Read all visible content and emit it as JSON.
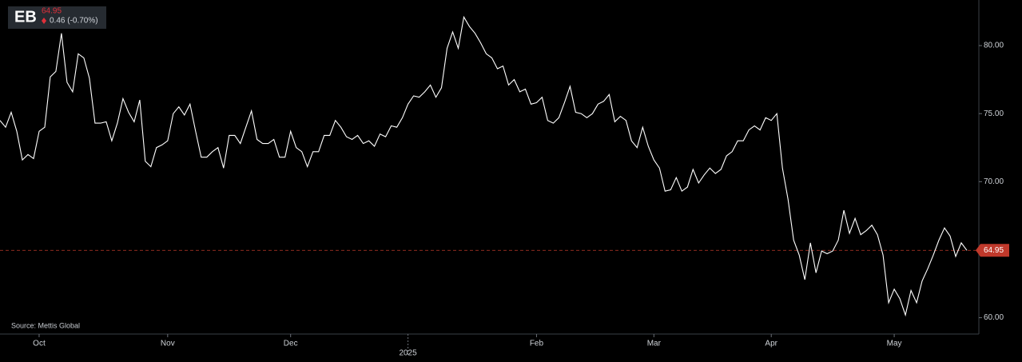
{
  "chart_data": {
    "type": "line",
    "symbol": "EB",
    "price": 64.95,
    "change": "0.46 (-0.70%)",
    "source": "Source: Mettis Global",
    "color": "#ffffff",
    "price_line_color": "#c0392b",
    "ylim": [
      58.8,
      83.35
    ],
    "yticks": [
      {
        "value": 60,
        "label": "60.00"
      },
      {
        "value": 70,
        "label": "70.00"
      },
      {
        "value": 75,
        "label": "75.00"
      },
      {
        "value": 80,
        "label": "80.00"
      }
    ],
    "categories": [
      null,
      null,
      null,
      null,
      null,
      null,
      null,
      "Oct",
      null,
      null,
      null,
      null,
      null,
      null,
      null,
      null,
      null,
      null,
      null,
      null,
      null,
      null,
      null,
      null,
      null,
      null,
      null,
      null,
      null,
      null,
      "Nov",
      null,
      null,
      null,
      null,
      null,
      null,
      null,
      null,
      null,
      null,
      null,
      null,
      null,
      null,
      null,
      null,
      null,
      null,
      null,
      null,
      null,
      "Dec",
      null,
      null,
      null,
      null,
      null,
      null,
      null,
      null,
      null,
      null,
      null,
      null,
      null,
      null,
      null,
      null,
      null,
      null,
      null,
      null,
      "2025",
      null,
      null,
      null,
      null,
      null,
      null,
      null,
      null,
      null,
      null,
      null,
      null,
      null,
      null,
      null,
      null,
      null,
      null,
      null,
      null,
      null,
      null,
      "Feb",
      null,
      null,
      null,
      null,
      null,
      null,
      null,
      null,
      null,
      null,
      null,
      null,
      null,
      null,
      null,
      null,
      null,
      null,
      null,
      null,
      "Mar",
      null,
      null,
      null,
      null,
      null,
      null,
      null,
      null,
      null,
      null,
      null,
      null,
      null,
      null,
      null,
      null,
      null,
      null,
      null,
      null,
      "Apr",
      null,
      null,
      null,
      null,
      null,
      null,
      null,
      null,
      null,
      null,
      null,
      null,
      null,
      null,
      null,
      null,
      null,
      null,
      null,
      null,
      null,
      "May",
      null,
      null,
      null,
      null,
      null,
      null,
      null,
      null,
      null,
      null,
      null,
      null,
      null
    ],
    "values": [
      74.5,
      74.0,
      75.1,
      73.7,
      71.6,
      72.0,
      71.7,
      73.7,
      74.0,
      77.7,
      78.1,
      80.9,
      77.3,
      76.6,
      79.4,
      79.1,
      77.6,
      74.3,
      74.3,
      74.4,
      73.0,
      74.3,
      76.1,
      75.1,
      74.4,
      76.0,
      71.5,
      71.1,
      72.5,
      72.7,
      73.0,
      75.0,
      75.5,
      74.9,
      75.7,
      73.7,
      71.8,
      71.8,
      72.2,
      72.5,
      71.0,
      73.4,
      73.4,
      72.8,
      74.0,
      75.2,
      73.1,
      72.8,
      72.8,
      73.1,
      71.8,
      71.8,
      73.7,
      72.5,
      72.2,
      71.1,
      72.2,
      72.2,
      73.4,
      73.4,
      74.5,
      74.0,
      73.3,
      73.1,
      73.4,
      72.8,
      73.0,
      72.6,
      73.5,
      73.3,
      74.1,
      74.0,
      74.7,
      75.7,
      76.3,
      76.2,
      76.6,
      77.1,
      76.2,
      76.9,
      79.8,
      81.0,
      79.8,
      82.1,
      81.4,
      80.9,
      80.2,
      79.4,
      79.1,
      78.3,
      78.5,
      77.1,
      77.5,
      76.6,
      76.8,
      75.7,
      75.8,
      76.2,
      74.5,
      74.3,
      74.7,
      75.8,
      77.0,
      75.1,
      75.0,
      74.7,
      75.0,
      75.7,
      75.9,
      76.4,
      74.4,
      74.8,
      74.5,
      73.0,
      72.5,
      74.0,
      72.6,
      71.6,
      71.0,
      69.3,
      69.4,
      70.3,
      69.3,
      69.6,
      70.9,
      69.9,
      70.5,
      71.0,
      70.6,
      70.9,
      71.9,
      72.2,
      73.0,
      73.0,
      73.8,
      74.1,
      73.8,
      74.7,
      74.5,
      75.0,
      71.0,
      68.7,
      65.7,
      64.6,
      62.8,
      65.5,
      63.3,
      64.9,
      64.7,
      64.9,
      65.7,
      67.9,
      66.2,
      67.3,
      66.1,
      66.4,
      66.8,
      66.1,
      64.6,
      61.1,
      62.1,
      61.4,
      60.2,
      62.0,
      61.1,
      62.7,
      63.6,
      64.6,
      65.7,
      66.6,
      66.0,
      64.5,
      65.5,
      64.95
    ]
  }
}
